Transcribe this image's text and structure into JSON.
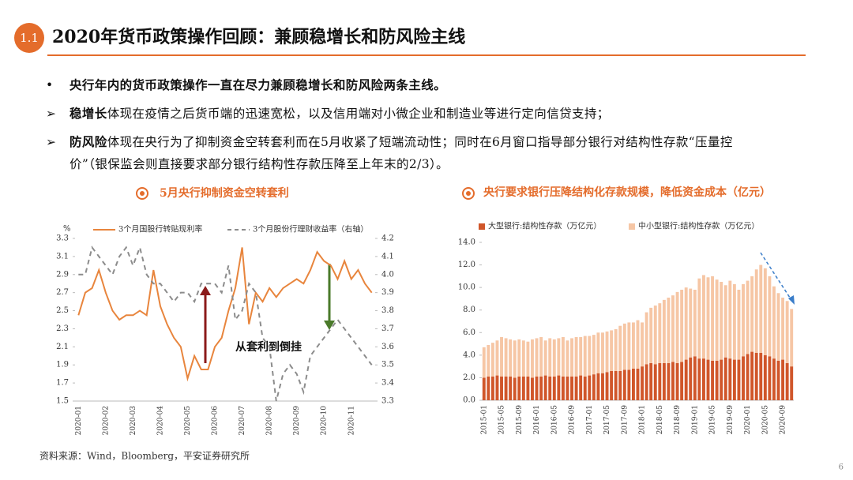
{
  "header": {
    "number": "1.1",
    "title": "2020年货币政策操作回顾：兼顾稳增长和防风险主线"
  },
  "bullets": [
    {
      "text": "央行年内的货币政策操作一直在尽力兼顾稳增长和防风险两条主线。"
    },
    {
      "bold": "稳增长",
      "text": "体现在疫情之后货币端的迅速宽松，以及信用端对小微企业和制造业等进行定向信贷支持；"
    },
    {
      "bold": "防风险",
      "text": "体现在央行为了抑制资金空转套利而在5月收紧了短端流动性；同时在6月窗口指导部分银行对结构性存款“压量控价”（银保监会则直接要求部分银行结构性存款压降至上年末的2/3）。"
    }
  ],
  "chart_data": [
    {
      "type": "line",
      "title": "5月央行抑制资金空转套利",
      "y_unit": "%",
      "annotation": "从套利到倒挂",
      "categories": [
        "2020-01",
        null,
        null,
        null,
        "2020-02",
        null,
        null,
        null,
        "2020-03",
        null,
        null,
        null,
        "2020-04",
        null,
        null,
        null,
        "2020-05",
        null,
        null,
        null,
        "2020-06",
        null,
        null,
        null,
        "2020-07",
        null,
        null,
        null,
        "2020-08",
        null,
        null,
        null,
        "2020-09",
        null,
        null,
        null,
        "2020-10",
        null,
        null,
        null,
        "2020-11",
        null,
        null,
        null
      ],
      "series": [
        {
          "name": "3个月国股行转贴现利率",
          "color": "#e8853d",
          "line_style": "solid",
          "values": [
            2.45,
            2.7,
            2.75,
            2.95,
            2.7,
            2.5,
            2.4,
            2.45,
            2.45,
            2.5,
            2.45,
            2.95,
            2.55,
            2.35,
            2.2,
            2.1,
            1.75,
            2.0,
            1.85,
            1.85,
            2.1,
            2.2,
            2.5,
            2.75,
            3.2,
            2.35,
            2.7,
            2.6,
            2.75,
            2.65,
            2.75,
            2.8,
            2.85,
            2.8,
            2.95,
            3.15,
            3.05,
            3.0,
            2.85,
            3.05,
            2.85,
            2.95,
            2.8,
            2.7
          ]
        },
        {
          "name": "3个月股份行理财收益率（右轴）",
          "color": "#8c8c8c",
          "line_style": "dashed",
          "axis": "y2",
          "values": [
            4.0,
            4.0,
            4.15,
            4.1,
            4.05,
            4.0,
            4.1,
            4.15,
            4.05,
            4.15,
            4.0,
            3.95,
            3.95,
            3.9,
            3.85,
            3.9,
            3.9,
            3.85,
            3.95,
            3.95,
            3.95,
            3.9,
            4.05,
            3.75,
            3.8,
            3.95,
            3.9,
            3.65,
            3.6,
            3.3,
            3.45,
            3.5,
            3.45,
            3.35,
            3.55,
            3.6,
            3.65,
            3.7,
            3.75,
            3.7,
            3.65,
            3.6,
            3.55,
            3.5
          ]
        }
      ],
      "ylim": [
        1.5,
        3.3
      ],
      "yticks": [
        1.5,
        1.7,
        1.9,
        2.1,
        2.3,
        2.5,
        2.7,
        2.9,
        3.1,
        3.3
      ],
      "y2lim": [
        3.3,
        4.2
      ],
      "y2ticks": [
        3.3,
        3.4,
        3.5,
        3.6,
        3.7,
        3.8,
        3.9,
        {
          "value": 4,
          "label": "4.0"
        },
        4.1,
        4.2
      ],
      "grid": false
    },
    {
      "type": "bar",
      "stacked": true,
      "title": "央行要求银行压降结构化存款规模，降低资金成本（亿元）",
      "categories": [
        "2015-01",
        null,
        null,
        null,
        "2015-05",
        null,
        null,
        null,
        "2015-09",
        null,
        null,
        null,
        "2016-01",
        null,
        null,
        null,
        "2016-05",
        null,
        null,
        null,
        "2016-09",
        null,
        null,
        null,
        "2017-01",
        null,
        null,
        null,
        "2017-05",
        null,
        null,
        null,
        "2017-09",
        null,
        null,
        null,
        "2018-01",
        null,
        null,
        null,
        "2018-05",
        null,
        null,
        null,
        "2018-09",
        null,
        null,
        null,
        "2019-01",
        null,
        null,
        null,
        "2019-05",
        null,
        null,
        null,
        "2019-09",
        null,
        null,
        null,
        "2020-01",
        null,
        null,
        null,
        "2020-05",
        null,
        null,
        null,
        "2020-09",
        null,
        null
      ],
      "series": [
        {
          "name": "大型银行:结构性存款（万亿元）",
          "color": "#d0562a",
          "values": [
            2.0,
            2.1,
            2.1,
            2.2,
            2.1,
            2.1,
            2.1,
            2.0,
            2.1,
            2.1,
            2.1,
            2.0,
            2.1,
            2.1,
            2.2,
            2.1,
            2.1,
            2.2,
            2.1,
            2.1,
            2.1,
            2.1,
            2.2,
            2.1,
            2.2,
            2.3,
            2.4,
            2.4,
            2.5,
            2.6,
            2.6,
            2.6,
            2.7,
            2.7,
            2.8,
            2.8,
            3.0,
            3.2,
            3.3,
            3.2,
            3.3,
            3.3,
            3.3,
            3.4,
            3.3,
            3.4,
            3.6,
            3.8,
            3.9,
            3.7,
            3.7,
            3.6,
            3.5,
            3.5,
            3.6,
            3.8,
            3.7,
            3.6,
            3.6,
            3.9,
            4.1,
            4.3,
            4.2,
            4.2,
            4.0,
            3.9,
            3.7,
            3.5,
            3.6,
            3.3,
            3.0
          ]
        },
        {
          "name": "中小型银行:结构性存款（万亿元）",
          "color": "#f6c6a5",
          "values": [
            2.7,
            2.8,
            3.0,
            3.1,
            3.5,
            3.4,
            3.3,
            3.3,
            3.3,
            3.2,
            3.1,
            3.4,
            3.4,
            3.5,
            3.1,
            3.4,
            3.3,
            3.3,
            3.5,
            3.2,
            3.4,
            3.5,
            3.4,
            3.6,
            3.5,
            3.5,
            3.6,
            3.6,
            3.6,
            3.6,
            3.7,
            4.0,
            4.1,
            4.2,
            4.1,
            4.3,
            3.9,
            4.6,
            4.9,
            5.2,
            5.3,
            5.6,
            5.8,
            5.9,
            6.3,
            6.4,
            6.4,
            6.1,
            5.9,
            7.1,
            7.4,
            7.3,
            7.5,
            7.2,
            6.9,
            6.4,
            6.9,
            6.7,
            6.2,
            6.4,
            6.5,
            6.7,
            7.4,
            7.8,
            7.7,
            7.1,
            6.4,
            6.0,
            5.5,
            5.5,
            5.1
          ]
        }
      ],
      "ylim": [
        0,
        14
      ],
      "yticks": [
        {
          "value": 0,
          "label": "0.0"
        },
        {
          "value": 2,
          "label": "2.0"
        },
        {
          "value": 4,
          "label": "4.0"
        },
        {
          "value": 6,
          "label": "6.0"
        },
        {
          "value": 8,
          "label": "8.0"
        },
        {
          "value": 10,
          "label": "10.0"
        },
        {
          "value": 12,
          "label": "12.0"
        },
        {
          "value": 14,
          "label": "14.0"
        }
      ],
      "grid": false
    }
  ],
  "source": "资料来源：Wind，Bloomberg，平安证券研究所",
  "page_number": "6"
}
